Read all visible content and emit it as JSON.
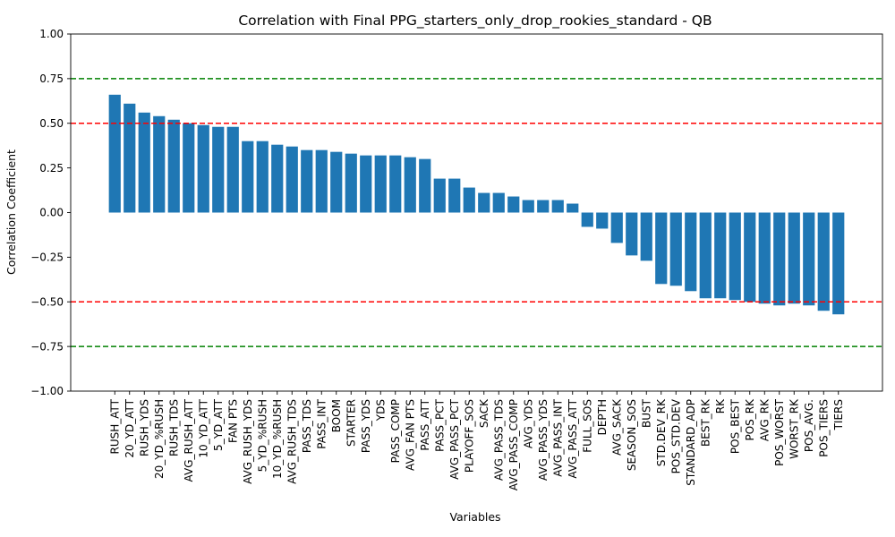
{
  "chart_data": {
    "type": "bar",
    "title": "Correlation with Final PPG_starters_only_drop_rookies_standard - QB",
    "xlabel": "Variables",
    "ylabel": "Correlation Coefficient",
    "ylim": [
      -1.0,
      1.0
    ],
    "yticks": [
      "−1.00",
      "−0.75",
      "−0.50",
      "−0.25",
      "0.00",
      "0.25",
      "0.50",
      "0.75",
      "1.00"
    ],
    "ytick_values": [
      -1.0,
      -0.75,
      -0.5,
      -0.25,
      0.0,
      0.25,
      0.5,
      0.75,
      1.0
    ],
    "bar_color": "#1f77b4",
    "reference_lines": [
      {
        "y": 0.75,
        "color": "#008000",
        "style": "dashed"
      },
      {
        "y": 0.5,
        "color": "#ff0000",
        "style": "dashed"
      },
      {
        "y": -0.5,
        "color": "#ff0000",
        "style": "dashed"
      },
      {
        "y": -0.75,
        "color": "#008000",
        "style": "dashed"
      }
    ],
    "grid": false,
    "categories": [
      "RUSH_ATT",
      "20_YD_ATT",
      "RUSH_YDS",
      "20_YD_%RUSH",
      "RUSH_TDS",
      "AVG_RUSH_ATT",
      "10_YD_ATT",
      "5_YD_ATT",
      "FAN PTS",
      "AVG_RUSH_YDS",
      "5_YD_%RUSH",
      "10_YD_%RUSH",
      "AVG_RUSH_TDS",
      "PASS_TDS",
      "PASS_INT",
      "BOOM",
      "STARTER",
      "PASS_YDS",
      "YDS",
      "PASS_COMP",
      "AVG_FAN PTS",
      "PASS_ATT",
      "PASS_PCT",
      "AVG_PASS_PCT",
      "PLAYOFF_SOS",
      "SACK",
      "AVG_PASS_TDS",
      "AVG_PASS_COMP",
      "AVG_YDS",
      "AVG_PASS_YDS",
      "AVG_PASS_INT",
      "AVG_PASS_ATT",
      "FULL_SOS",
      "DEPTH",
      "AVG_SACK",
      "SEASON_SOS",
      "BUST",
      "STD.DEV_RK",
      "POS_STD.DEV",
      "STANDARD_ADP",
      "BEST_RK",
      "RK",
      "POS_BEST",
      "POS_RK",
      "AVG_RK",
      "POS_WORST",
      "WORST_RK",
      "POS_AVG.",
      "POS_TIERS",
      "TIERS"
    ],
    "values": [
      0.66,
      0.61,
      0.56,
      0.54,
      0.52,
      0.5,
      0.49,
      0.48,
      0.48,
      0.4,
      0.4,
      0.38,
      0.37,
      0.35,
      0.35,
      0.34,
      0.33,
      0.32,
      0.32,
      0.32,
      0.31,
      0.3,
      0.19,
      0.19,
      0.14,
      0.11,
      0.11,
      0.09,
      0.07,
      0.07,
      0.07,
      0.05,
      -0.08,
      -0.09,
      -0.17,
      -0.24,
      -0.27,
      -0.4,
      -0.41,
      -0.44,
      -0.48,
      -0.48,
      -0.49,
      -0.5,
      -0.51,
      -0.52,
      -0.51,
      -0.52,
      -0.55,
      -0.57
    ]
  }
}
